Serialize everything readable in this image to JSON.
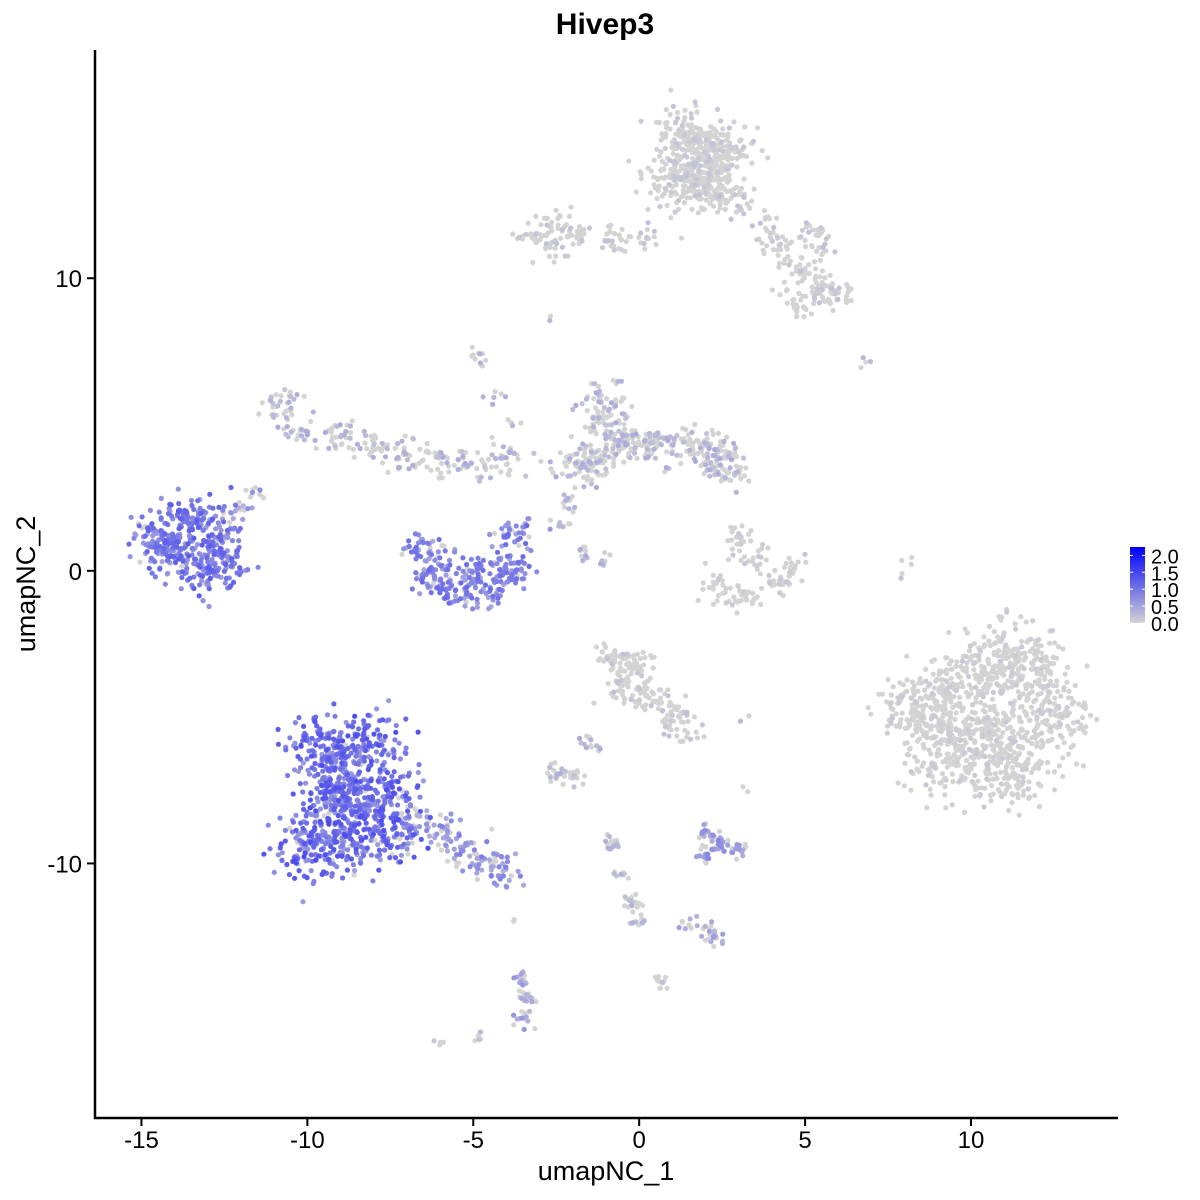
{
  "chart_data": {
    "type": "scatter",
    "title": "Hivep3",
    "xlabel": "umapNC_1",
    "ylabel": "umapNC_2",
    "xlim": [
      -16.4,
      14.4
    ],
    "ylim": [
      -18.7,
      17.8
    ],
    "x_ticks": [
      -15,
      -10,
      -5,
      0,
      5,
      10
    ],
    "y_ticks": [
      -10,
      0,
      10
    ],
    "x_tick_labels": [
      "-15",
      "-10",
      "-5",
      "0",
      "5",
      "10"
    ],
    "y_tick_labels": [
      "-10",
      "0",
      "10"
    ],
    "grid": false,
    "legend": {
      "placement": "right",
      "type": "colorbar",
      "ticks": [
        0.0,
        0.5,
        1.0,
        1.5,
        2.0
      ],
      "tick_labels": [
        "0.0",
        "0.5",
        "1.0",
        "1.5",
        "2.0"
      ],
      "range": [
        0,
        2.25
      ],
      "low_color": "#d3d3d3",
      "high_color": "#0000ff"
    },
    "clusters": [
      {
        "anchors": [
          [
            1.3,
            15.0
          ],
          [
            2.0,
            14.6
          ],
          [
            1.5,
            13.8
          ],
          [
            2.3,
            13.4
          ],
          [
            1.0,
            13.5
          ],
          [
            2.8,
            14.2
          ],
          [
            1.9,
            13.0
          ]
        ],
        "spread": 0.45,
        "n": 520,
        "mean_expression": 0.12
      },
      {
        "anchors": [
          [
            3.2,
            12.5
          ],
          [
            3.8,
            11.8
          ],
          [
            4.4,
            11.0
          ],
          [
            5.0,
            10.3
          ],
          [
            5.5,
            9.7
          ],
          [
            5.9,
            9.5
          ],
          [
            4.7,
            9.2
          ],
          [
            5.4,
            11.4
          ]
        ],
        "spread": 0.3,
        "n": 200,
        "mean_expression": 0.15
      },
      {
        "anchors": [
          [
            0.2,
            11.5
          ],
          [
            -0.8,
            11.3
          ],
          [
            -1.8,
            11.5
          ],
          [
            -2.6,
            11.9
          ],
          [
            -3.2,
            11.4
          ],
          [
            -2.5,
            11.0
          ]
        ],
        "spread": 0.22,
        "n": 130,
        "mean_expression": 0.15
      },
      {
        "anchors": [
          [
            -14.2,
            1.4
          ],
          [
            -13.5,
            1.8
          ],
          [
            -12.8,
            1.2
          ],
          [
            -13.8,
            0.6
          ],
          [
            -12.6,
            0.3
          ],
          [
            -14.5,
            0.8
          ],
          [
            -13.0,
            0.0
          ]
        ],
        "spread": 0.42,
        "n": 430,
        "mean_expression": 0.85
      },
      {
        "anchors": [
          [
            -12.0,
            2.0
          ],
          [
            -11.6,
            2.6
          ]
        ],
        "spread": 0.2,
        "n": 25,
        "mean_expression": 0.5
      },
      {
        "anchors": [
          [
            -9.5,
            -6.0
          ],
          [
            -9.0,
            -7.0
          ],
          [
            -8.6,
            -8.0
          ],
          [
            -9.6,
            -8.5
          ],
          [
            -10.0,
            -9.5
          ],
          [
            -8.8,
            -9.3
          ],
          [
            -7.8,
            -7.5
          ],
          [
            -8.2,
            -5.8
          ],
          [
            -7.5,
            -9.0
          ]
        ],
        "spread": 0.55,
        "n": 900,
        "mean_expression": 0.95
      },
      {
        "anchors": [
          [
            -6.8,
            -8.6
          ],
          [
            -6.0,
            -9.0
          ],
          [
            -5.2,
            -9.5
          ],
          [
            -4.5,
            -10.0
          ],
          [
            -4.0,
            -10.3
          ]
        ],
        "spread": 0.3,
        "n": 150,
        "mean_expression": 0.6
      },
      {
        "anchors": [
          [
            9.0,
            -5.0
          ],
          [
            10.0,
            -3.5
          ],
          [
            11.0,
            -3.0
          ],
          [
            12.0,
            -3.5
          ],
          [
            12.5,
            -5.0
          ],
          [
            11.5,
            -6.0
          ],
          [
            10.3,
            -5.5
          ],
          [
            9.2,
            -6.5
          ],
          [
            11.0,
            -7.0
          ],
          [
            8.4,
            -4.6
          ]
        ],
        "spread": 0.6,
        "n": 1100,
        "mean_expression": 0.08
      },
      {
        "anchors": [
          [
            -10.8,
            5.5
          ],
          [
            -10.2,
            4.8
          ],
          [
            -9.0,
            4.6
          ],
          [
            -8.0,
            4.3
          ],
          [
            -7.0,
            4.0
          ],
          [
            -6.0,
            3.7
          ],
          [
            -5.0,
            3.6
          ],
          [
            -4.0,
            3.8
          ]
        ],
        "spread": 0.3,
        "n": 220,
        "mean_expression": 0.3
      },
      {
        "anchors": [
          [
            -6.4,
            0.7
          ],
          [
            -6.2,
            -0.3
          ],
          [
            -5.5,
            -0.7
          ],
          [
            -4.6,
            -0.6
          ],
          [
            -3.9,
            0.0
          ],
          [
            -3.7,
            1.2
          ],
          [
            -5.0,
            0.0
          ]
        ],
        "spread": 0.32,
        "n": 300,
        "mean_expression": 0.75
      },
      {
        "anchors": [
          [
            -1.2,
            5.8
          ],
          [
            -1.0,
            5.0
          ],
          [
            -0.5,
            4.3
          ],
          [
            -1.5,
            3.8
          ],
          [
            0.5,
            4.3
          ],
          [
            1.5,
            4.3
          ],
          [
            2.2,
            4.0
          ],
          [
            2.6,
            3.7
          ],
          [
            -2.0,
            3.6
          ]
        ],
        "spread": 0.35,
        "n": 420,
        "mean_expression": 0.3
      },
      {
        "anchors": [
          [
            3.1,
            1.1
          ],
          [
            3.4,
            0.5
          ],
          [
            2.3,
            -0.6
          ],
          [
            3.2,
            -0.9
          ],
          [
            4.2,
            -0.4
          ],
          [
            4.5,
            0.1
          ]
        ],
        "spread": 0.25,
        "n": 130,
        "mean_expression": 0.1
      },
      {
        "anchors": [
          [
            -0.8,
            -3.0
          ],
          [
            0.0,
            -3.2
          ],
          [
            -0.5,
            -4.0
          ],
          [
            0.3,
            -4.2
          ],
          [
            1.0,
            -4.8
          ],
          [
            1.2,
            -5.4
          ]
        ],
        "spread": 0.3,
        "n": 200,
        "mean_expression": 0.15
      },
      {
        "anchors": [
          [
            -2.6,
            -6.9
          ],
          [
            -2.0,
            -7.0
          ],
          [
            -1.5,
            -6.0
          ]
        ],
        "spread": 0.2,
        "n": 45,
        "mean_expression": 0.3
      },
      {
        "anchors": [
          [
            2.0,
            -9.6
          ],
          [
            2.5,
            -9.4
          ],
          [
            3.0,
            -9.5
          ],
          [
            2.1,
            -9.0
          ]
        ],
        "spread": 0.18,
        "n": 70,
        "mean_expression": 0.55
      },
      {
        "anchors": [
          [
            -0.8,
            -9.3
          ],
          [
            -0.5,
            -10.3
          ],
          [
            -0.2,
            -11.3
          ],
          [
            -0.1,
            -12.0
          ]
        ],
        "spread": 0.15,
        "n": 55,
        "mean_expression": 0.25
      },
      {
        "anchors": [
          [
            1.4,
            -12.0
          ],
          [
            2.0,
            -12.3
          ],
          [
            2.3,
            -12.6
          ]
        ],
        "spread": 0.15,
        "n": 30,
        "mean_expression": 0.4
      },
      {
        "anchors": [
          [
            -3.6,
            -13.9
          ],
          [
            -3.4,
            -14.6
          ],
          [
            -3.5,
            -15.3
          ]
        ],
        "spread": 0.15,
        "n": 50,
        "mean_expression": 0.45
      },
      {
        "anchors": [
          [
            -4.8,
            7.4
          ],
          [
            -4.4,
            6.0
          ],
          [
            -3.8,
            5.0
          ],
          [
            -1.4,
            3.0
          ],
          [
            -2.2,
            2.4
          ],
          [
            -2.4,
            1.6
          ],
          [
            -1.6,
            0.6
          ],
          [
            -1.0,
            0.3
          ]
        ],
        "spread": 0.15,
        "n": 60,
        "mean_expression": 0.3
      },
      {
        "anchors": [
          [
            5.0,
            -7.2
          ],
          [
            3.2,
            -5.0
          ],
          [
            8.2,
            0.4
          ],
          [
            7.8,
            -0.2
          ],
          [
            -10.5,
            6.0
          ],
          [
            -2.7,
            8.6
          ],
          [
            -6.0,
            -16.3
          ],
          [
            -4.8,
            -15.9
          ],
          [
            0.6,
            -14.0
          ],
          [
            3.2,
            -7.6
          ],
          [
            6.8,
            7.1
          ],
          [
            -3.8,
            -12.0
          ]
        ],
        "spread": 0.12,
        "n": 40,
        "mean_expression": 0.2
      }
    ]
  }
}
